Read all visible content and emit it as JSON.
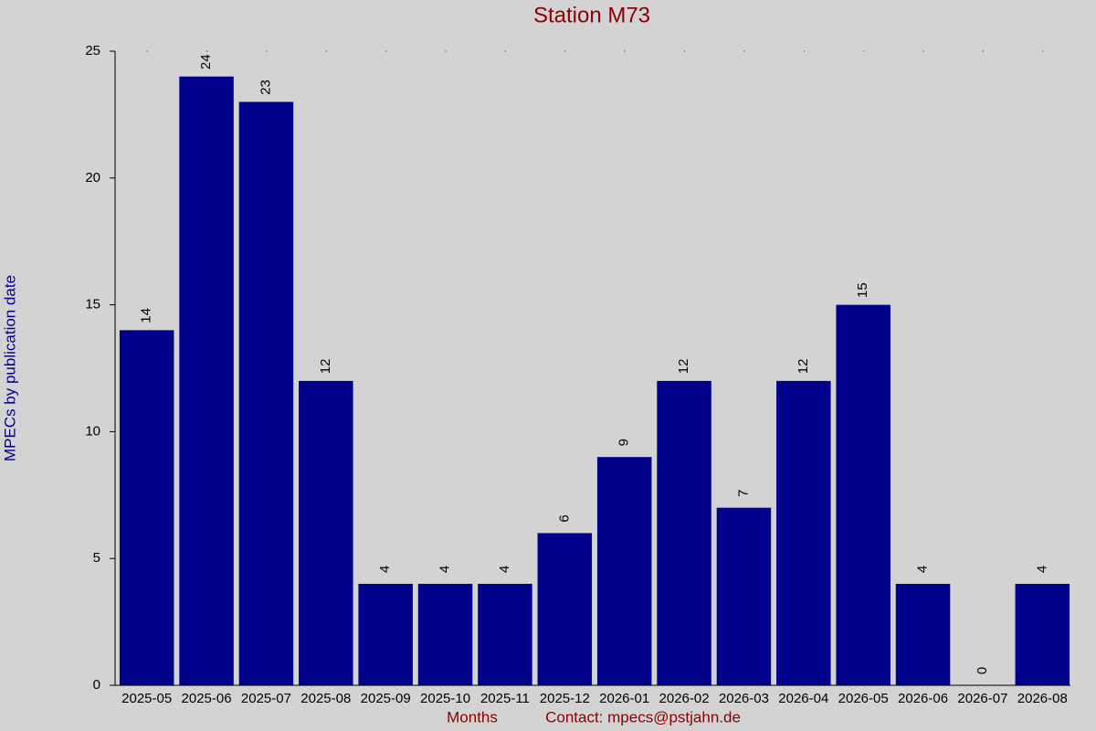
{
  "chart_data": {
    "type": "bar",
    "title": "Station M73",
    "y_label": "MPECs by publication date",
    "x_label": "Months",
    "note": "Contact: mpecs@pstjahn.de",
    "categories": [
      "2025-05",
      "2025-06",
      "2025-07",
      "2025-08",
      "2025-09",
      "2025-10",
      "2025-11",
      "2025-12",
      "2026-01",
      "2026-02",
      "2026-03",
      "2026-04",
      "2026-05",
      "2026-06",
      "2026-07",
      "2026-08"
    ],
    "values": [
      14,
      24,
      23,
      12,
      4,
      4,
      4,
      6,
      9,
      12,
      7,
      12,
      15,
      4,
      0,
      4
    ],
    "color": "#00008b",
    "ylim": [
      0,
      25
    ],
    "yticks": [
      0,
      5,
      10,
      15,
      20,
      25
    ],
    "show_value_labels": true
  }
}
